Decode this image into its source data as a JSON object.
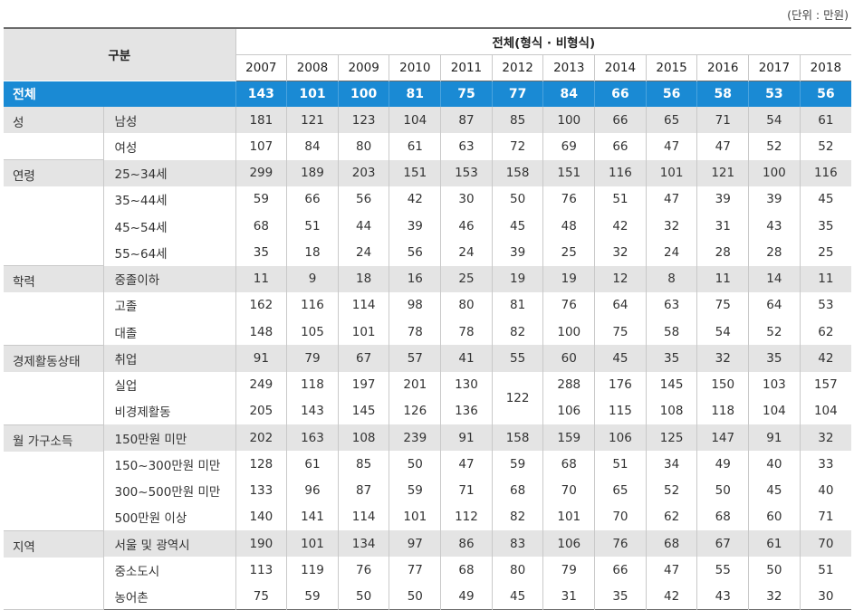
{
  "unit_note": "(단위 : 만원)",
  "header": {
    "category_label": "구분",
    "group_label": "전체(형식 · 비형식)",
    "years": [
      "2007",
      "2008",
      "2009",
      "2010",
      "2011",
      "2012",
      "2013",
      "2014",
      "2015",
      "2016",
      "2017",
      "2018"
    ]
  },
  "total": {
    "label": "전체",
    "values": [
      "143",
      "101",
      "100",
      "81",
      "75",
      "77",
      "84",
      "66",
      "56",
      "58",
      "53",
      "56"
    ]
  },
  "groups": [
    {
      "name": "성",
      "rows": [
        {
          "label": "남성",
          "values": [
            "181",
            "121",
            "123",
            "104",
            "87",
            "85",
            "100",
            "66",
            "65",
            "71",
            "54",
            "61"
          ]
        },
        {
          "label": "여성",
          "values": [
            "107",
            "84",
            "80",
            "61",
            "63",
            "72",
            "69",
            "66",
            "47",
            "47",
            "52",
            "52"
          ]
        }
      ]
    },
    {
      "name": "연령",
      "rows": [
        {
          "label": "25~34세",
          "values": [
            "299",
            "189",
            "203",
            "151",
            "153",
            "158",
            "151",
            "116",
            "101",
            "121",
            "100",
            "116"
          ]
        },
        {
          "label": "35~44세",
          "values": [
            "59",
            "66",
            "56",
            "42",
            "30",
            "50",
            "76",
            "51",
            "47",
            "39",
            "39",
            "45"
          ]
        },
        {
          "label": "45~54세",
          "values": [
            "68",
            "51",
            "44",
            "39",
            "46",
            "45",
            "48",
            "42",
            "32",
            "31",
            "43",
            "35"
          ]
        },
        {
          "label": "55~64세",
          "values": [
            "35",
            "18",
            "24",
            "56",
            "24",
            "39",
            "25",
            "32",
            "24",
            "28",
            "28",
            "25"
          ]
        }
      ]
    },
    {
      "name": "학력",
      "rows": [
        {
          "label": "중졸이하",
          "values": [
            "11",
            "9",
            "18",
            "16",
            "25",
            "19",
            "19",
            "12",
            "8",
            "11",
            "14",
            "11"
          ]
        },
        {
          "label": "고졸",
          "values": [
            "162",
            "116",
            "114",
            "98",
            "80",
            "81",
            "76",
            "64",
            "63",
            "75",
            "64",
            "53"
          ]
        },
        {
          "label": "대졸",
          "values": [
            "148",
            "105",
            "101",
            "78",
            "78",
            "82",
            "100",
            "75",
            "58",
            "54",
            "52",
            "62"
          ]
        }
      ]
    },
    {
      "name": "경제활동상태",
      "rows": [
        {
          "label": "취업",
          "values": [
            "91",
            "79",
            "67",
            "57",
            "41",
            "55",
            "60",
            "45",
            "35",
            "32",
            "35",
            "42"
          ]
        },
        {
          "label": "실업",
          "values": [
            "249",
            "118",
            "197",
            "201",
            "130",
            "122",
            "288",
            "176",
            "145",
            "150",
            "103",
            "157"
          ]
        },
        {
          "label": "비경제활동",
          "values": [
            "205",
            "143",
            "145",
            "126",
            "136",
            "",
            "106",
            "115",
            "108",
            "118",
            "104",
            "104"
          ]
        }
      ]
    },
    {
      "name": "월 가구소득",
      "rows": [
        {
          "label": "150만원 미만",
          "values": [
            "202",
            "163",
            "108",
            "239",
            "91",
            "158",
            "159",
            "106",
            "125",
            "147",
            "91",
            "32"
          ]
        },
        {
          "label": "150~300만원 미만",
          "values": [
            "128",
            "61",
            "85",
            "50",
            "47",
            "59",
            "68",
            "51",
            "34",
            "49",
            "40",
            "33"
          ]
        },
        {
          "label": "300~500만원 미만",
          "values": [
            "133",
            "96",
            "87",
            "59",
            "71",
            "68",
            "70",
            "65",
            "52",
            "50",
            "45",
            "40"
          ]
        },
        {
          "label": "500만원 이상",
          "values": [
            "140",
            "141",
            "114",
            "101",
            "112",
            "82",
            "101",
            "70",
            "62",
            "68",
            "60",
            "71"
          ]
        }
      ]
    },
    {
      "name": "지역",
      "rows": [
        {
          "label": "서울 및 광역시",
          "values": [
            "190",
            "101",
            "134",
            "97",
            "86",
            "83",
            "106",
            "76",
            "68",
            "67",
            "61",
            "70"
          ]
        },
        {
          "label": "중소도시",
          "values": [
            "113",
            "119",
            "76",
            "77",
            "68",
            "80",
            "79",
            "66",
            "47",
            "55",
            "50",
            "51"
          ]
        },
        {
          "label": "농어촌",
          "values": [
            "75",
            "59",
            "50",
            "50",
            "49",
            "45",
            "31",
            "35",
            "42",
            "43",
            "32",
            "30"
          ]
        }
      ]
    }
  ]
}
